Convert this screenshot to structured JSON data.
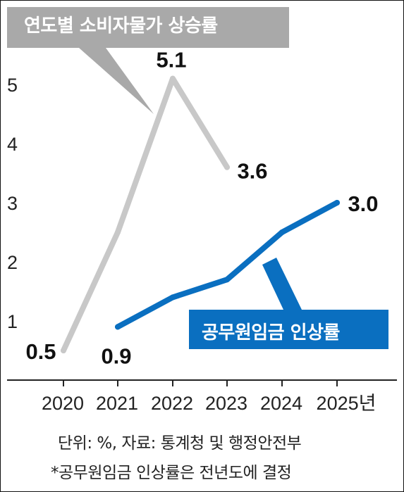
{
  "chart_data": {
    "type": "line",
    "title": "연도별 소비자물가 상승률",
    "x": [
      "2020",
      "2021",
      "2022",
      "2023",
      "2024",
      "2025"
    ],
    "x_tick_labels": [
      "2020",
      "2021",
      "2022",
      "2023",
      "2024",
      "2025년"
    ],
    "y_ticks": [
      "1",
      "2",
      "3",
      "4",
      "5"
    ],
    "ylim": [
      0,
      5.5
    ],
    "grid": false,
    "series": [
      {
        "name": "연도별 소비자물가 상승률",
        "color": "#c8c8c8",
        "x": [
          "2020",
          "2021",
          "2022",
          "2023"
        ],
        "values": [
          0.5,
          2.5,
          5.1,
          3.6
        ],
        "labels": [
          {
            "x": "2020",
            "text": "0.5"
          },
          {
            "x": "2022",
            "text": "5.1"
          },
          {
            "x": "2023",
            "text": "3.6"
          }
        ]
      },
      {
        "name": "공무원임금 인상률",
        "color": "#0a6fc0",
        "x": [
          "2021",
          "2022",
          "2023",
          "2024",
          "2025"
        ],
        "values": [
          0.9,
          1.4,
          1.7,
          2.5,
          3.0
        ],
        "labels": [
          {
            "x": "2021",
            "text": "0.9"
          },
          {
            "x": "2025",
            "text": "3.0"
          }
        ]
      }
    ],
    "notes": [
      "단위: %, 자료: 통계청 및 행정안전부",
      "*공무원임금 인상률은 전년도에 결정"
    ]
  }
}
